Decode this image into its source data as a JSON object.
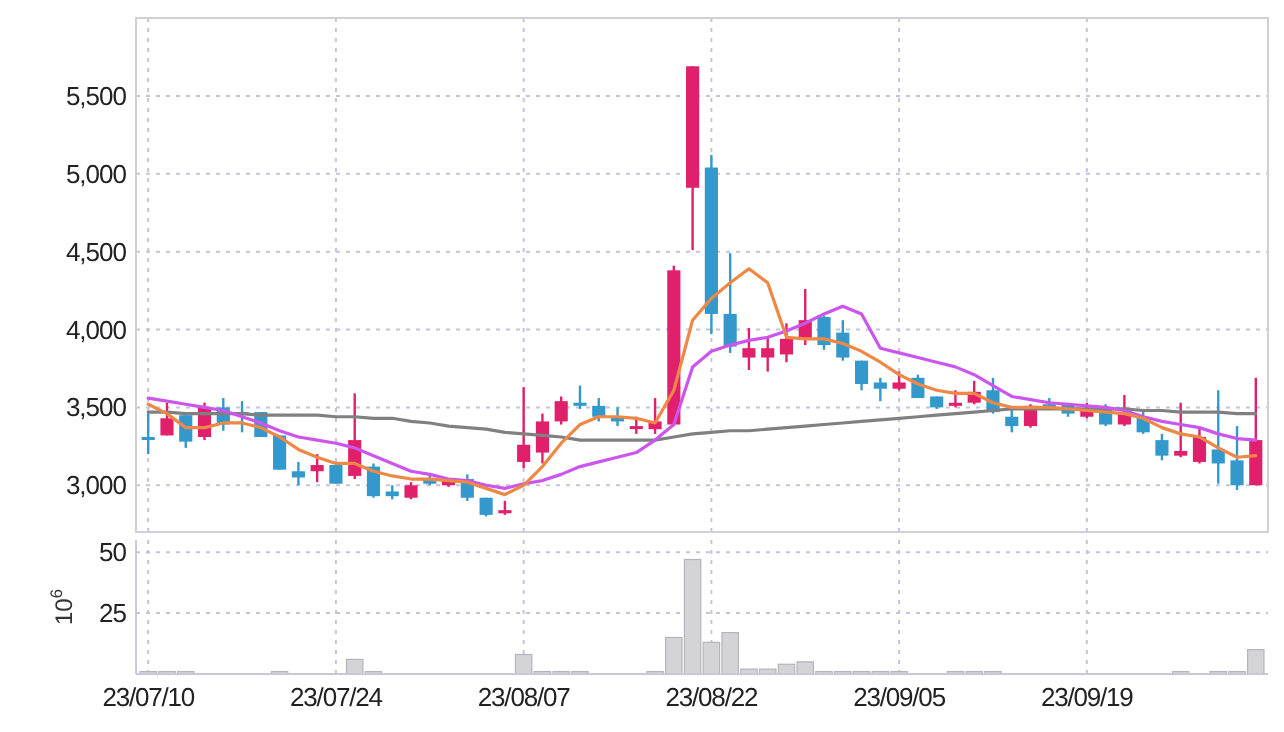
{
  "chart_data": [
    {
      "type": "candlestick",
      "categories": [
        null,
        null,
        null,
        null,
        null,
        null,
        null,
        null,
        null,
        null,
        null,
        null,
        null,
        null,
        null,
        null,
        null,
        null,
        null,
        null,
        null,
        null,
        null,
        null,
        null,
        null,
        null,
        null,
        null,
        null,
        null,
        null,
        null,
        null,
        null,
        null,
        null,
        null,
        null,
        null,
        null,
        null,
        null,
        null,
        null,
        null,
        null,
        null,
        null,
        null,
        null,
        null,
        null,
        null,
        null,
        null,
        null,
        null,
        null,
        null
      ],
      "ohlc": [
        [
          3310,
          3470,
          3200,
          3300
        ],
        [
          3320,
          3530,
          3320,
          3430
        ],
        [
          3450,
          3450,
          3240,
          3280
        ],
        [
          3310,
          3530,
          3290,
          3500
        ],
        [
          3500,
          3560,
          3350,
          3390
        ],
        [
          3470,
          3540,
          3340,
          3450
        ],
        [
          3470,
          3470,
          3310,
          3310
        ],
        [
          3320,
          3320,
          3100,
          3100
        ],
        [
          3090,
          3150,
          3000,
          3050
        ],
        [
          3090,
          3200,
          3020,
          3130
        ],
        [
          3130,
          3130,
          3010,
          3010
        ],
        [
          3060,
          3590,
          3040,
          3290
        ],
        [
          3120,
          3140,
          2920,
          2930
        ],
        [
          2960,
          3000,
          2910,
          2930
        ],
        [
          2920,
          3020,
          2910,
          3000
        ],
        [
          3040,
          3070,
          3000,
          3010
        ],
        [
          3000,
          3040,
          2990,
          3040
        ],
        [
          3040,
          3070,
          2900,
          2920
        ],
        [
          2920,
          2920,
          2800,
          2810
        ],
        [
          2820,
          2900,
          2810,
          2840
        ],
        [
          3150,
          3630,
          3110,
          3260
        ],
        [
          3210,
          3460,
          3140,
          3410
        ],
        [
          3410,
          3570,
          3390,
          3540
        ],
        [
          3530,
          3640,
          3490,
          3510
        ],
        [
          3510,
          3560,
          3410,
          3440
        ],
        [
          3440,
          3500,
          3380,
          3410
        ],
        [
          3370,
          3440,
          3330,
          3380
        ],
        [
          3360,
          3560,
          3330,
          3410
        ],
        [
          3390,
          4410,
          3380,
          4380
        ],
        [
          4910,
          5690,
          4510,
          5690
        ],
        [
          5040,
          5120,
          3970,
          4100
        ],
        [
          4100,
          4490,
          3850,
          3890
        ],
        [
          3820,
          4010,
          3740,
          3880
        ],
        [
          3820,
          3950,
          3730,
          3880
        ],
        [
          3840,
          4040,
          3790,
          3940
        ],
        [
          3940,
          4260,
          3900,
          4060
        ],
        [
          4080,
          4090,
          3870,
          3900
        ],
        [
          3980,
          4060,
          3800,
          3820
        ],
        [
          3800,
          3800,
          3610,
          3650
        ],
        [
          3660,
          3690,
          3540,
          3620
        ],
        [
          3620,
          3730,
          3610,
          3660
        ],
        [
          3690,
          3710,
          3560,
          3560
        ],
        [
          3570,
          3570,
          3490,
          3500
        ],
        [
          3510,
          3610,
          3500,
          3530
        ],
        [
          3530,
          3670,
          3520,
          3600
        ],
        [
          3610,
          3690,
          3460,
          3470
        ],
        [
          3440,
          3500,
          3340,
          3380
        ],
        [
          3380,
          3520,
          3370,
          3510
        ],
        [
          3520,
          3560,
          3490,
          3510
        ],
        [
          3520,
          3530,
          3440,
          3460
        ],
        [
          3440,
          3530,
          3430,
          3480
        ],
        [
          3500,
          3520,
          3380,
          3390
        ],
        [
          3390,
          3580,
          3380,
          3460
        ],
        [
          3440,
          3490,
          3330,
          3340
        ],
        [
          3290,
          3330,
          3160,
          3190
        ],
        [
          3190,
          3530,
          3180,
          3220
        ],
        [
          3150,
          3370,
          3140,
          3310
        ],
        [
          3230,
          3610,
          3010,
          3140
        ],
        [
          3160,
          3380,
          2970,
          3000
        ],
        [
          3000,
          3690,
          3000,
          3290
        ]
      ],
      "colors": [
        "#3399cc",
        "#e0206a",
        "#3399cc",
        "#e0206a",
        "#3399cc",
        "#3399cc",
        "#3399cc",
        "#3399cc",
        "#3399cc",
        "#e0206a",
        "#3399cc",
        "#e0206a",
        "#3399cc",
        "#3399cc",
        "#e0206a",
        "#3399cc",
        "#e0206a",
        "#3399cc",
        "#3399cc",
        "#e0206a",
        "#e0206a",
        "#e0206a",
        "#e0206a",
        "#3399cc",
        "#3399cc",
        "#3399cc",
        "#e0206a",
        "#e0206a",
        "#e0206a",
        "#e0206a",
        "#3399cc",
        "#3399cc",
        "#e0206a",
        "#e0206a",
        "#e0206a",
        "#e0206a",
        "#3399cc",
        "#3399cc",
        "#3399cc",
        "#3399cc",
        "#e0206a",
        "#3399cc",
        "#3399cc",
        "#e0206a",
        "#e0206a",
        "#3399cc",
        "#3399cc",
        "#e0206a",
        "#3399cc",
        "#3399cc",
        "#e0206a",
        "#3399cc",
        "#e0206a",
        "#3399cc",
        "#3399cc",
        "#e0206a",
        "#e0206a",
        "#3399cc",
        "#3399cc",
        "#e0206a"
      ],
      "series": [
        {
          "type": "line",
          "color": "#808080",
          "values": [
            3470,
            3470,
            3460,
            3460,
            3460,
            3460,
            3450,
            3450,
            3450,
            3450,
            3440,
            3440,
            3430,
            3430,
            3410,
            3400,
            3380,
            3370,
            3360,
            3340,
            3330,
            3320,
            3310,
            3290,
            3290,
            3290,
            3290,
            3290,
            3310,
            3330,
            3340,
            3350,
            3350,
            3360,
            3370,
            3380,
            3390,
            3400,
            3410,
            3420,
            3430,
            3440,
            3450,
            3460,
            3470,
            3480,
            3490,
            3490,
            3490,
            3490,
            3490,
            3490,
            3490,
            3480,
            3480,
            3470,
            3470,
            3470,
            3460,
            3460
          ]
        },
        {
          "type": "line",
          "color": "#cc55ee",
          "values": [
            3560,
            3540,
            3520,
            3500,
            3480,
            3440,
            3400,
            3350,
            3310,
            3290,
            3270,
            3240,
            3190,
            3140,
            3090,
            3070,
            3040,
            3030,
            3000,
            2980,
            3010,
            3030,
            3070,
            3120,
            3150,
            3180,
            3210,
            3290,
            3390,
            3760,
            3860,
            3900,
            3930,
            3950,
            3990,
            4040,
            4100,
            4150,
            4100,
            3880,
            3850,
            3820,
            3790,
            3760,
            3710,
            3640,
            3570,
            3550,
            3530,
            3520,
            3510,
            3500,
            3480,
            3440,
            3410,
            3390,
            3370,
            3330,
            3300,
            3290
          ]
        },
        {
          "type": "line",
          "color": "#ee8844",
          "values": [
            3520,
            3460,
            3370,
            3370,
            3400,
            3400,
            3370,
            3310,
            3230,
            3180,
            3140,
            3140,
            3090,
            3060,
            3040,
            3040,
            3030,
            3020,
            2980,
            2940,
            3000,
            3120,
            3270,
            3390,
            3440,
            3440,
            3430,
            3400,
            3610,
            4060,
            4200,
            4300,
            4390,
            4300,
            3950,
            3940,
            3940,
            3910,
            3860,
            3790,
            3710,
            3650,
            3610,
            3590,
            3590,
            3530,
            3500,
            3500,
            3500,
            3490,
            3480,
            3470,
            3460,
            3430,
            3370,
            3330,
            3310,
            3240,
            3180,
            3190
          ]
        }
      ],
      "ylim": [
        2700,
        6000
      ],
      "yticks": [
        {
          "value": 3000,
          "label": "3,000"
        },
        {
          "value": 3500,
          "label": "3,500"
        },
        {
          "value": 4000,
          "label": "4,000"
        },
        {
          "value": 4500,
          "label": "4,500"
        },
        {
          "value": 5000,
          "label": "5,000"
        },
        {
          "value": 5500,
          "label": "5,500"
        }
      ],
      "grid": true,
      "tick_labels": "y"
    },
    {
      "type": "bar",
      "categories": [
        "23/07/10",
        null,
        null,
        null,
        null,
        null,
        null,
        null,
        null,
        null,
        "23/07/24",
        null,
        null,
        null,
        null,
        null,
        null,
        null,
        null,
        null,
        "23/08/07",
        null,
        null,
        null,
        null,
        null,
        null,
        null,
        null,
        null,
        "23/08/22",
        null,
        null,
        null,
        null,
        null,
        null,
        null,
        null,
        null,
        "23/09/05",
        null,
        null,
        null,
        null,
        null,
        null,
        null,
        null,
        null,
        "23/09/19",
        null,
        null,
        null,
        null,
        null,
        null,
        null,
        null,
        null
      ],
      "values": [
        1,
        1,
        1,
        0,
        0,
        0,
        0,
        1,
        0,
        0,
        0,
        6,
        1,
        0,
        0,
        0,
        0,
        0,
        0,
        0,
        8,
        1,
        1,
        1,
        0,
        0,
        0,
        1,
        15,
        47,
        13,
        17,
        2,
        2,
        4,
        5,
        1,
        1,
        1,
        1,
        1,
        0,
        0,
        1,
        1,
        1,
        0,
        0,
        0,
        0,
        0,
        0,
        0,
        0,
        0,
        1,
        0,
        1,
        1,
        10
      ],
      "color": "#d4d4d8",
      "ylabel": "10$^{6}$",
      "ylim": [
        0,
        55
      ],
      "yticks": [
        25,
        50
      ],
      "grid": true
    }
  ]
}
